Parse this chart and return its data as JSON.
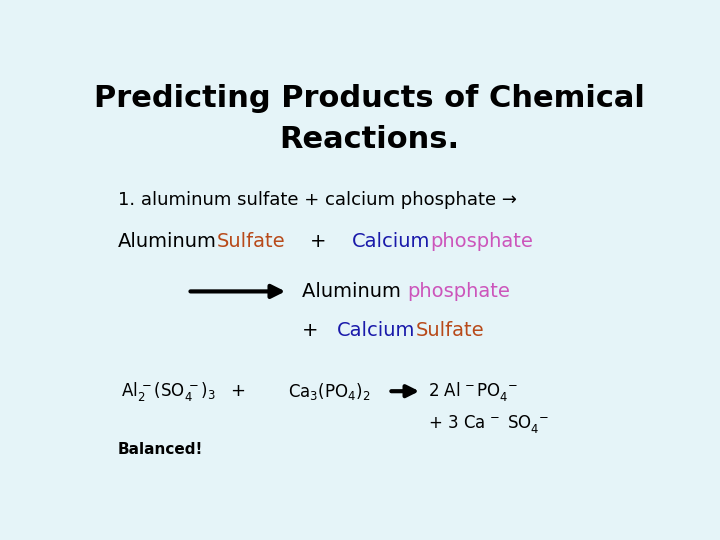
{
  "bg_color": "#e5f4f8",
  "title_line1": "Predicting Products of Chemical",
  "title_line2": "Reactions.",
  "title_fontsize": 22,
  "title_color": "#000000",
  "line1_text": "1. aluminum sulfate + calcium phosphate →",
  "line1_fontsize": 13,
  "line1_color": "#000000",
  "sulfate_color": "#b84a1a",
  "calcium_color": "#1a1aaa",
  "phosphate_color": "#cc55bb",
  "balanced_text": "Balanced!"
}
